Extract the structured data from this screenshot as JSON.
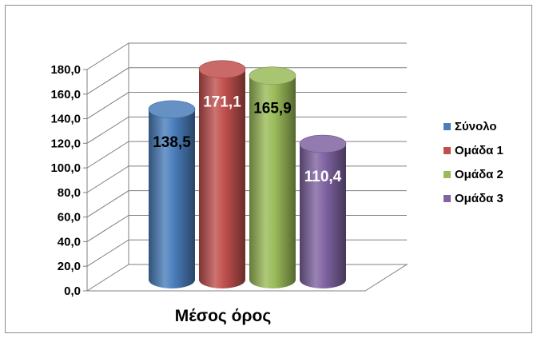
{
  "chart_data": {
    "type": "bar",
    "variant": "3d-cylinder",
    "categories": [
      "Μέσος όρος"
    ],
    "series": [
      {
        "name": "Σύνολο",
        "values": [
          138.5
        ],
        "label": "138,5",
        "color": "#4a7ebb",
        "label_color": "#000000"
      },
      {
        "name": "Ομάδα 1",
        "values": [
          171.1
        ],
        "label": "171,1",
        "color": "#c0504d",
        "label_color": "#ffffff"
      },
      {
        "name": "Ομάδα 2",
        "values": [
          165.9
        ],
        "label": "165,9",
        "color": "#9bbb59",
        "label_color": "#000000"
      },
      {
        "name": "Ομάδα 3",
        "values": [
          110.4
        ],
        "label": "110,4",
        "color": "#8064a2",
        "label_color": "#ffffff"
      }
    ],
    "yticks": [
      "0,0",
      "20,0",
      "40,0",
      "60,0",
      "80,0",
      "100,0",
      "120,0",
      "140,0",
      "160,0",
      "180,0"
    ],
    "ylim": [
      0,
      180
    ],
    "grid": true,
    "legend_position": "right",
    "title": "",
    "xlabel": "",
    "ylabel": ""
  }
}
